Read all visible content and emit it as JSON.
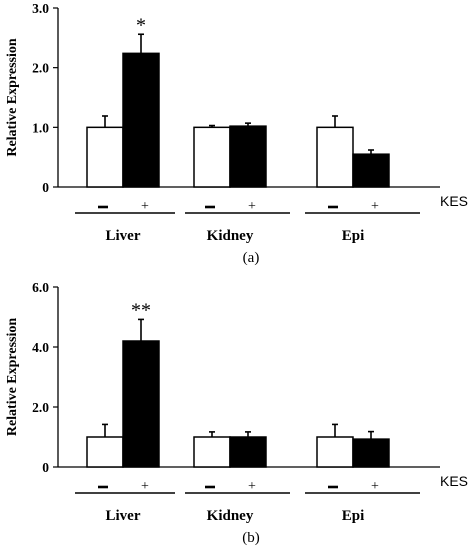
{
  "chart_data": [
    {
      "type": "bar",
      "panel_label": "(a)",
      "ylabel": "Relative Expression",
      "ylim": [
        0,
        3.0
      ],
      "yticks": [
        "0",
        "1.0",
        "2.0",
        "3.0"
      ],
      "treatment_label": "KES",
      "treatment_levels": [
        "−",
        "+"
      ],
      "groups": [
        "Liver",
        "Kidney",
        "Epi"
      ],
      "series": [
        {
          "name": "−",
          "fill": "#ffffff",
          "values": [
            1.0,
            1.0,
            1.0
          ],
          "errors": [
            0.19,
            0.03,
            0.19
          ]
        },
        {
          "name": "+",
          "fill": "#000000",
          "values": [
            2.24,
            1.02,
            0.55
          ],
          "errors": [
            0.32,
            0.05,
            0.07
          ]
        }
      ],
      "annotations": [
        {
          "group": 0,
          "series": 1,
          "text": "*"
        }
      ]
    },
    {
      "type": "bar",
      "panel_label": "(b)",
      "ylabel": "Relative Expression",
      "ylim": [
        0,
        6.0
      ],
      "yticks": [
        "0",
        "2.0",
        "4.0",
        "6.0"
      ],
      "treatment_label": "KES",
      "treatment_levels": [
        "−",
        "+"
      ],
      "groups": [
        "Liver",
        "Kidney",
        "Epi"
      ],
      "series": [
        {
          "name": "−",
          "fill": "#ffffff",
          "values": [
            1.0,
            1.0,
            1.0
          ],
          "errors": [
            0.42,
            0.17,
            0.42
          ]
        },
        {
          "name": "+",
          "fill": "#000000",
          "values": [
            4.2,
            1.0,
            0.93
          ],
          "errors": [
            0.72,
            0.17,
            0.25
          ]
        }
      ],
      "annotations": [
        {
          "group": 0,
          "series": 1,
          "text": "**"
        }
      ]
    }
  ]
}
